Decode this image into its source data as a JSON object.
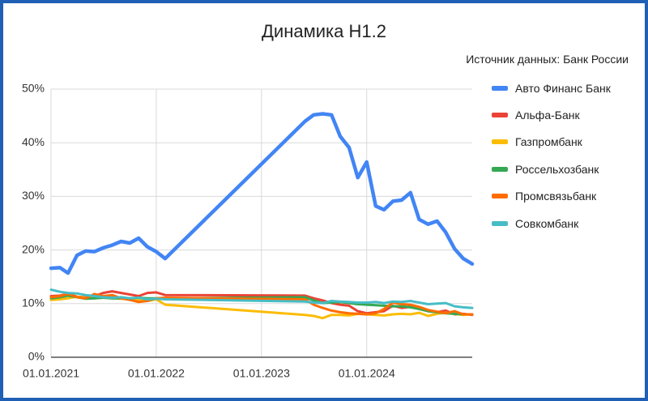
{
  "page": {
    "frame_color": "#1f5fb4"
  },
  "chart_data": {
    "type": "line",
    "title": "Динамика Н1.2",
    "subtitle": "Источник данных: Банк России",
    "xlabel": "",
    "ylabel": "",
    "xlim": [
      "01.01.2021",
      "01.01.2025"
    ],
    "ylim": [
      0,
      50
    ],
    "grid": true,
    "legend_position": "right",
    "x_tick_labels": [
      "01.01.2021",
      "01.01.2022",
      "01.01.2023",
      "01.01.2024"
    ],
    "y_ticks": [
      {
        "value": 0,
        "label": "0%"
      },
      {
        "value": 10,
        "label": "10%"
      },
      {
        "value": 20,
        "label": "20%"
      },
      {
        "value": 30,
        "label": "30%"
      },
      {
        "value": 40,
        "label": "40%"
      },
      {
        "value": 50,
        "label": "50%"
      }
    ],
    "x": [
      "01.01.2021",
      "01.02.2021",
      "01.03.2021",
      "01.04.2021",
      "01.05.2021",
      "01.06.2021",
      "01.07.2021",
      "01.08.2021",
      "01.09.2021",
      "01.10.2021",
      "01.11.2021",
      "01.12.2021",
      "01.01.2022",
      "01.02.2022",
      "01.06.2023",
      "01.07.2023",
      "01.08.2023",
      "01.09.2023",
      "01.10.2023",
      "01.11.2023",
      "01.12.2023",
      "01.01.2024",
      "01.02.2024",
      "01.03.2024",
      "01.04.2024",
      "01.05.2024",
      "01.06.2024",
      "01.07.2024",
      "01.08.2024",
      "01.09.2024",
      "01.10.2024",
      "01.11.2024",
      "01.12.2024",
      "01.01.2025"
    ],
    "series": [
      {
        "name": "Авто Финанс Банк",
        "color": "#4285f4",
        "values": [
          16.6,
          16.7,
          15.7,
          19.0,
          19.8,
          19.7,
          20.4,
          20.9,
          21.6,
          21.3,
          22.2,
          20.6,
          19.7,
          18.4,
          44.0,
          45.2,
          45.4,
          45.2,
          41.2,
          39.1,
          33.5,
          36.4,
          28.2,
          27.5,
          29.1,
          29.3,
          30.7,
          25.7,
          24.8,
          25.4,
          23.3,
          20.2,
          18.4,
          17.4
        ]
      },
      {
        "name": "Альфа-Банк",
        "color": "#ea4335",
        "values": [
          11.4,
          11.5,
          11.8,
          11.3,
          11.2,
          11.4,
          12.0,
          12.3,
          12.0,
          11.7,
          11.4,
          12.0,
          12.1,
          11.6,
          11.5,
          11.0,
          10.6,
          10.1,
          9.8,
          9.6,
          8.6,
          8.2,
          8.4,
          8.6,
          9.6,
          9.2,
          9.4,
          9.0,
          8.6,
          8.4,
          8.7,
          8.0,
          8.1,
          7.9
        ]
      },
      {
        "name": "Газпромбанк",
        "color": "#fbbc04",
        "values": [
          10.7,
          10.8,
          11.0,
          11.3,
          11.1,
          11.0,
          11.1,
          11.0,
          10.9,
          10.8,
          10.7,
          10.5,
          10.8,
          9.8,
          7.9,
          7.7,
          7.3,
          7.9,
          7.9,
          7.8,
          8.1,
          8.0,
          7.9,
          7.8,
          8.0,
          8.1,
          8.0,
          8.3,
          7.7,
          8.1,
          8.3,
          8.1,
          7.9,
          8.0
        ]
      },
      {
        "name": "Россельхозбанк",
        "color": "#34a853",
        "values": [
          11.0,
          11.2,
          11.5,
          11.2,
          10.9,
          11.0,
          11.1,
          11.0,
          11.0,
          11.0,
          11.1,
          11.0,
          11.0,
          11.0,
          11.2,
          10.6,
          10.1,
          10.2,
          10.3,
          10.1,
          9.9,
          9.8,
          9.7,
          9.6,
          9.5,
          9.5,
          9.3,
          9.0,
          8.6,
          8.4,
          8.2,
          8.1,
          8.0,
          8.0
        ]
      },
      {
        "name": "Промсвязьбанк",
        "color": "#ff6d01",
        "values": [
          11.2,
          11.4,
          11.8,
          11.2,
          11.0,
          11.8,
          11.4,
          11.6,
          11.0,
          10.7,
          10.3,
          10.5,
          11.0,
          11.1,
          10.8,
          9.8,
          9.2,
          8.7,
          8.4,
          8.2,
          8.1,
          8.0,
          8.2,
          9.0,
          10.2,
          9.9,
          9.8,
          9.4,
          8.8,
          8.5,
          8.2,
          8.6,
          8.0,
          8.0
        ]
      },
      {
        "name": "Совкомбанк",
        "color": "#46bdc6",
        "values": [
          12.6,
          12.2,
          12.0,
          11.9,
          11.6,
          11.4,
          11.2,
          11.1,
          11.2,
          11.0,
          11.1,
          10.8,
          10.9,
          10.8,
          10.4,
          10.2,
          10.1,
          10.5,
          10.4,
          10.3,
          10.2,
          10.2,
          10.3,
          10.1,
          10.4,
          10.3,
          10.5,
          10.2,
          9.9,
          10.0,
          10.1,
          9.5,
          9.3,
          9.2
        ]
      }
    ]
  }
}
